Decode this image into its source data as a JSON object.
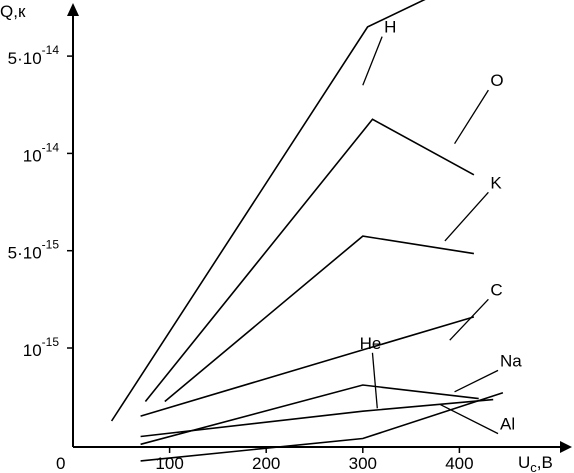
{
  "chart_data": {
    "type": "line",
    "xlabel": "U",
    "xlabel_sub": "c",
    "xlabel_unit": ",B",
    "ylabel": "Q,к",
    "origin_label": "0",
    "xlim": [
      -10,
      460
    ],
    "x_ticks": [
      100,
      200,
      300,
      400
    ],
    "x_tick_labels": [
      "100",
      "200",
      "300",
      "400"
    ],
    "y_ticks": [
      {
        "mantissa": "10",
        "exponent": "-15"
      },
      {
        "mantissa": "5·10",
        "exponent": "-15"
      },
      {
        "mantissa": "10",
        "exponent": "-14"
      },
      {
        "mantissa": "5·10",
        "exponent": "-14"
      }
    ],
    "grid": false,
    "series": [
      {
        "name": "H",
        "points": [
          [
            40,
            0.25
          ],
          [
            305,
            4.3
          ],
          [
            410,
            4.8
          ]
        ]
      },
      {
        "name": "O",
        "points": [
          [
            75,
            0.45
          ],
          [
            310,
            3.35
          ],
          [
            415,
            2.78
          ]
        ]
      },
      {
        "name": "K",
        "points": [
          [
            95,
            0.45
          ],
          [
            300,
            2.15
          ],
          [
            415,
            1.97
          ]
        ]
      },
      {
        "name": "C",
        "points": [
          [
            70,
            0.3
          ],
          [
            300,
            0.98
          ],
          [
            415,
            1.32
          ]
        ]
      },
      {
        "name": "Na",
        "points": [
          [
            70,
            0.01
          ],
          [
            300,
            0.62
          ],
          [
            420,
            0.48
          ]
        ]
      },
      {
        "name": "He",
        "points": [
          [
            70,
            0.09
          ],
          [
            300,
            0.35
          ],
          [
            435,
            0.47
          ]
        ]
      },
      {
        "name": "Al",
        "points": [
          [
            70,
            -0.16
          ],
          [
            300,
            0.07
          ],
          [
            445,
            0.54
          ]
        ]
      }
    ],
    "annotations": [
      {
        "series": "H",
        "text": "H",
        "from": [
          320,
          4.2
        ],
        "to": [
          300,
          3.7
        ]
      },
      {
        "series": "O",
        "text": "O",
        "from": [
          430,
          3.65
        ],
        "to": [
          395,
          3.1
        ]
      },
      {
        "series": "K",
        "text": "K",
        "from": [
          430,
          2.6
        ],
        "to": [
          385,
          2.1
        ]
      },
      {
        "series": "C",
        "text": "C",
        "from": [
          430,
          1.5
        ],
        "to": [
          390,
          1.08
        ]
      },
      {
        "series": "Na",
        "text": "Na",
        "from": [
          440,
          0.77
        ],
        "to": [
          395,
          0.55
        ]
      },
      {
        "series": "He",
        "text": "He",
        "from": [
          310,
          0.95
        ],
        "to": [
          315,
          0.38
        ]
      },
      {
        "series": "Al",
        "text": "Al",
        "from": [
          440,
          0.12
        ],
        "to": [
          380,
          0.42
        ]
      }
    ]
  }
}
